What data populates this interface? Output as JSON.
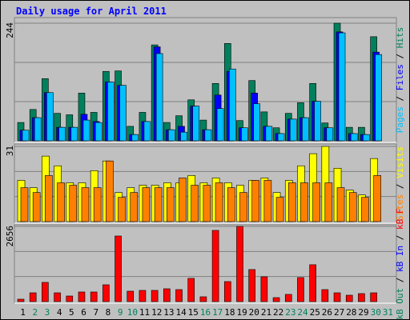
{
  "title": "Daily usage for April 2011",
  "legend_separator": " / ",
  "chart_data": [
    {
      "type": "bar",
      "ylim": [
        0,
        244
      ],
      "yticks": [
        244
      ],
      "series": [
        {
          "name": "Hits",
          "color": "#00805c",
          "values": [
            38,
            65,
            129,
            57,
            54,
            99,
            59,
            144,
            145,
            30,
            59,
            199,
            38,
            52,
            85,
            43,
            119,
            202,
            42,
            125,
            60,
            27,
            57,
            79,
            119,
            37,
            244,
            28,
            28,
            216,
            0
          ]
        },
        {
          "name": "Files",
          "color": "#0000ff",
          "values": [
            22,
            48,
            100,
            28,
            28,
            55,
            40,
            122,
            115,
            13,
            40,
            195,
            23,
            30,
            72,
            23,
            95,
            144,
            27,
            99,
            30,
            15,
            45,
            48,
            82,
            27,
            226,
            15,
            13,
            184,
            0
          ]
        },
        {
          "name": "Pages",
          "color": "#00c0ff",
          "values": [
            22,
            48,
            100,
            28,
            28,
            43,
            38,
            122,
            115,
            13,
            40,
            181,
            23,
            18,
            72,
            23,
            67,
            149,
            27,
            77,
            30,
            15,
            45,
            48,
            82,
            27,
            224,
            15,
            13,
            179,
            0
          ]
        }
      ]
    },
    {
      "type": "bar",
      "ylim": [
        0,
        31
      ],
      "yticks": [
        31
      ],
      "series": [
        {
          "name": "Visits",
          "color": "#ffff00",
          "values": [
            17,
            14,
            27,
            23,
            16,
            16,
            21,
            25,
            12,
            14,
            15,
            15,
            16,
            16,
            19,
            16,
            18,
            16,
            15,
            17,
            18,
            12,
            17,
            23,
            28,
            31,
            22,
            13,
            11,
            26,
            0
          ]
        },
        {
          "name": "Sites",
          "color": "#ff8000",
          "values": [
            14,
            12,
            19,
            16,
            15,
            14,
            14,
            25,
            10,
            12,
            14,
            14,
            14,
            18,
            15,
            15,
            16,
            14,
            12,
            17,
            17,
            10,
            16,
            16,
            16,
            16,
            14,
            12,
            10,
            19,
            0
          ]
        }
      ]
    },
    {
      "type": "bar",
      "ylim": [
        0,
        2656
      ],
      "yticks": [
        2656
      ],
      "categories": [
        "1",
        "2",
        "3",
        "4",
        "5",
        "6",
        "7",
        "8",
        "9",
        "10",
        "11",
        "12",
        "13",
        "14",
        "15",
        "16",
        "17",
        "18",
        "19",
        "20",
        "21",
        "22",
        "23",
        "24",
        "25",
        "26",
        "27",
        "28",
        "29",
        "30",
        "31"
      ],
      "category_colors": [
        "#000000",
        "#00805c",
        "#00805c",
        "#000000",
        "#000000",
        "#000000",
        "#000000",
        "#000000",
        "#00805c",
        "#00805c",
        "#000000",
        "#000000",
        "#000000",
        "#000000",
        "#000000",
        "#00805c",
        "#00805c",
        "#000000",
        "#000000",
        "#000000",
        "#000000",
        "#000000",
        "#00805c",
        "#00805c",
        "#000000",
        "#000000",
        "#000000",
        "#000000",
        "#000000",
        "#00805c",
        "#00805c"
      ],
      "series": [
        {
          "name": "kB F",
          "color": "#ff0000",
          "values": [
            85,
            311,
            679,
            311,
            198,
            340,
            340,
            594,
            2317,
            368,
            396,
            396,
            453,
            424,
            820,
            170,
            2515,
            707,
            2656,
            1132,
            877,
            141,
            255,
            849,
            1302,
            424,
            311,
            226,
            283,
            311,
            0
          ]
        },
        {
          "name": "kB In",
          "color": "#0000ff"
        },
        {
          "name": "kB Out",
          "color": "#00805c"
        }
      ]
    }
  ]
}
